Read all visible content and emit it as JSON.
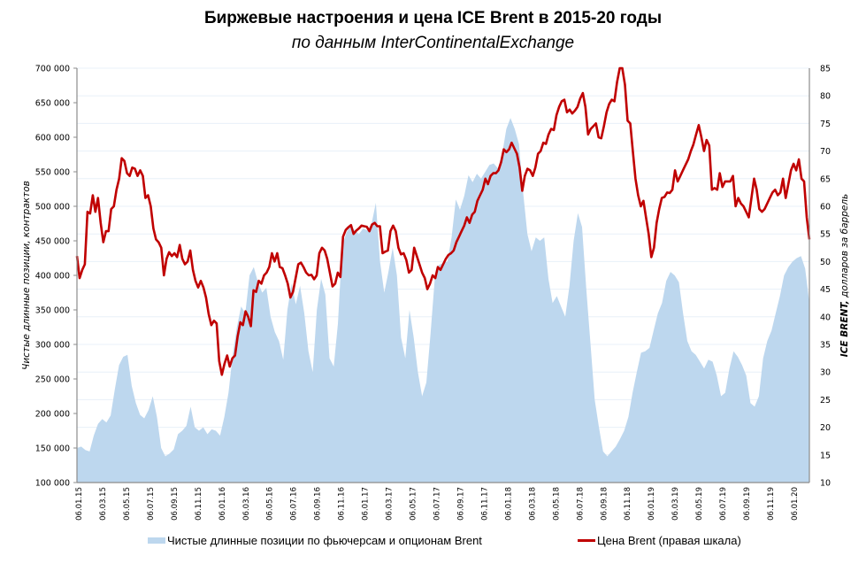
{
  "chart_data": {
    "type": "area+line",
    "title": "Биржевые настроения и цена ICE Brent в 2015-20 годы",
    "subtitle": "по данным InterContinentalExchange",
    "ylabel_left": "Чистые длинные позиции, контрактов",
    "ylabel_right_bold": "ICE BRENT,",
    "ylabel_right_rest": " долларов за баррель",
    "ylim_left": [
      100000,
      700000
    ],
    "ylim_right": [
      10,
      85
    ],
    "yticks_left": [
      "700 000",
      "650 000",
      "600 000",
      "550 000",
      "500 000",
      "450 000",
      "400 000",
      "350 000",
      "300 000",
      "250 000",
      "200 000",
      "150 000",
      "100 000"
    ],
    "yticks_right": [
      "85",
      "80",
      "75",
      "70",
      "65",
      "60",
      "55",
      "50",
      "45",
      "40",
      "35",
      "30",
      "25",
      "20",
      "15",
      "10"
    ],
    "xticks": [
      "06.01.15",
      "06.03.15",
      "06.05.15",
      "06.07.15",
      "06.09.15",
      "06.11.15",
      "06.01.16",
      "06.03.16",
      "06.05.16",
      "06.07.16",
      "06.09.16",
      "06.11.16",
      "06.01.17",
      "06.03.17",
      "06.05.17",
      "06.07.17",
      "06.09.17",
      "06.11.17",
      "06.01.18",
      "06.03.18",
      "06.05.18",
      "06.07.18",
      "06.09.18",
      "06.11.18",
      "06.01.19",
      "06.03.19",
      "06.05.19",
      "06.07.19",
      "06.09.19",
      "06.11.19",
      "06.01.20"
    ],
    "grid": true,
    "legend_position": "bottom",
    "series": [
      {
        "name": "Чистые длинные позиции по фьючерсам и опционам Brent",
        "axis": "left",
        "type": "area",
        "color": "#bdd7ee",
        "values": [
          150000,
          152000,
          147000,
          145000,
          168000,
          185000,
          192000,
          187000,
          197000,
          235000,
          270000,
          282000,
          285000,
          240000,
          215000,
          198000,
          193000,
          205000,
          225000,
          195000,
          150000,
          138000,
          142000,
          148000,
          170000,
          175000,
          182000,
          210000,
          180000,
          175000,
          180000,
          170000,
          177000,
          175000,
          168000,
          195000,
          230000,
          285000,
          325000,
          355000,
          345000,
          400000,
          412000,
          390000,
          375000,
          382000,
          340000,
          318000,
          305000,
          278000,
          350000,
          388000,
          358000,
          385000,
          345000,
          290000,
          260000,
          350000,
          395000,
          372000,
          280000,
          268000,
          330000,
          442000,
          462000,
          472000,
          465000,
          460000,
          468000,
          465000,
          475000,
          505000,
          420000,
          375000,
          405000,
          440000,
          400000,
          310000,
          280000,
          350000,
          310000,
          260000,
          225000,
          245000,
          315000,
          395000,
          415000,
          418000,
          420000,
          455000,
          510000,
          495000,
          515000,
          545000,
          535000,
          547000,
          540000,
          550000,
          560000,
          562000,
          555000,
          575000,
          612000,
          628000,
          612000,
          590000,
          520000,
          460000,
          435000,
          455000,
          450000,
          455000,
          395000,
          360000,
          370000,
          355000,
          340000,
          385000,
          450000,
          490000,
          470000,
          380000,
          300000,
          220000,
          180000,
          145000,
          138000,
          145000,
          152000,
          163000,
          175000,
          195000,
          230000,
          260000,
          288000,
          290000,
          295000,
          320000,
          345000,
          360000,
          392000,
          405000,
          400000,
          390000,
          345000,
          305000,
          290000,
          285000,
          275000,
          265000,
          278000,
          275000,
          255000,
          225000,
          230000,
          265000,
          290000,
          282000,
          270000,
          255000,
          215000,
          210000,
          225000,
          280000,
          305000,
          320000,
          345000,
          370000,
          400000,
          412000,
          420000,
          425000,
          428000,
          410000,
          360000
        ]
      },
      {
        "name": "Цена Brent (правая шкала)",
        "axis": "right",
        "type": "line",
        "color": "#c00000",
        "values": [
          51,
          47,
          48.5,
          49.5,
          59,
          58.7,
          62,
          59,
          61.5,
          57,
          53.5,
          55.5,
          55.5,
          59.5,
          60,
          63,
          65,
          68.7,
          68.2,
          66,
          65.5,
          67,
          66.8,
          65.5,
          66.5,
          65.5,
          61.5,
          62,
          60,
          56,
          54,
          53.5,
          52.5,
          47.5,
          50.5,
          51.7,
          51,
          51.5,
          50.8,
          53,
          50.5,
          49.5,
          50,
          52,
          48.5,
          46.5,
          45.3,
          46.5,
          45.3,
          43.5,
          40.5,
          38.5,
          39.3,
          38.8,
          32,
          29.5,
          31.5,
          33,
          31,
          32.5,
          33,
          36.5,
          39,
          38.5,
          41,
          40,
          38.3,
          44.8,
          44.5,
          46.5,
          46,
          47.5,
          48,
          49,
          51.5,
          50,
          51.5,
          49,
          48.8,
          47.5,
          46,
          43.5,
          44.5,
          47,
          49.5,
          49.8,
          49,
          48,
          47.5,
          47.6,
          46.8,
          47.5,
          51.5,
          52.5,
          52,
          50.5,
          48,
          45.5,
          46,
          48,
          47.2,
          54.5,
          55.7,
          56.2,
          56.6,
          55,
          55.6,
          56,
          56.5,
          56.4,
          56.3,
          55.5,
          56.7,
          57,
          56.4,
          56.4,
          51.5,
          51.8,
          52,
          55.5,
          56.5,
          55.5,
          52.5,
          51.3,
          51.5,
          50.3,
          48,
          48.5,
          52.5,
          51,
          49.5,
          48,
          47,
          45,
          46,
          47.5,
          47,
          49,
          48.5,
          49.5,
          50.5,
          51.2,
          51.5,
          52,
          53.5,
          54.5,
          55.5,
          56.5,
          58,
          57,
          58.5,
          59,
          61,
          62,
          63,
          65,
          64,
          65.5,
          66,
          66,
          66.5,
          68,
          70.3,
          69.8,
          70.3,
          71.5,
          70.5,
          69.5,
          67,
          62.8,
          65.5,
          66.8,
          66.5,
          65.5,
          67,
          69.5,
          70,
          71.5,
          71.3,
          73,
          74,
          73.8,
          76.5,
          78,
          79,
          79.3,
          77,
          77.5,
          76.8,
          77.3,
          78,
          79.5,
          80.5,
          78,
          73,
          74,
          74.5,
          75,
          72.5,
          72.3,
          74.5,
          77,
          78.5,
          79.3,
          79,
          82.5,
          85.5,
          86,
          82,
          75.5,
          75,
          70,
          65,
          62,
          60,
          61,
          58,
          55,
          50.8,
          52.5,
          57,
          59.5,
          61.5,
          61.7,
          62.5,
          62.4,
          63,
          66.5,
          64.5,
          65.5,
          66.5,
          67.5,
          68.5,
          70,
          71.2,
          73,
          74.7,
          72.5,
          70,
          72,
          71,
          63,
          63.3,
          63,
          66,
          63.5,
          64.5,
          64.5,
          64.5,
          65.5,
          60,
          61.5,
          60.5,
          60,
          59,
          58,
          61.5,
          65,
          63,
          59.5,
          59,
          59.5,
          60.5,
          61.5,
          62.5,
          63,
          62,
          62.5,
          65,
          61.5,
          64,
          66.5,
          67.7,
          66.5,
          68.5,
          65,
          64.5,
          58,
          54
        ]
      }
    ]
  }
}
